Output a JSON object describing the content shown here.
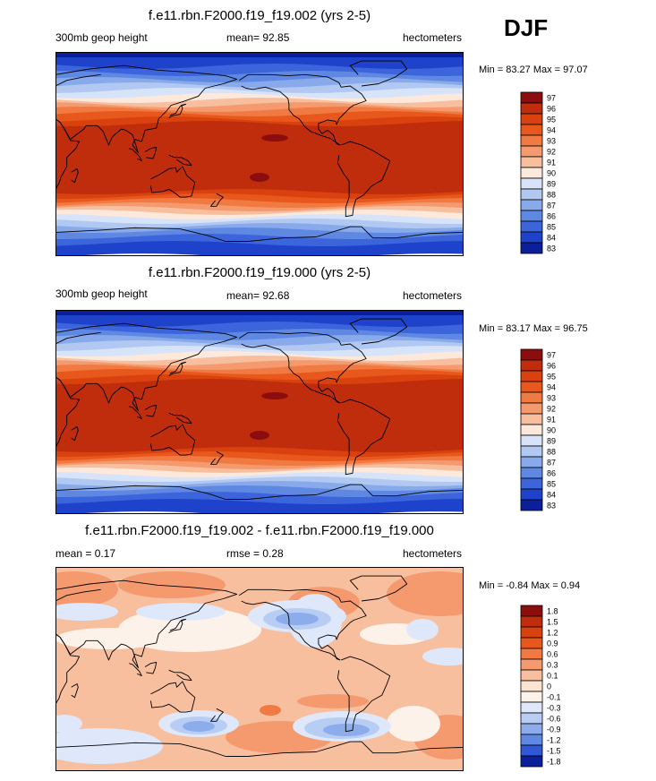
{
  "season": "DJF",
  "panels": [
    {
      "id": "p1",
      "title": "f.e11.rbn.F2000.f19_f19.002 (yrs 2-5)",
      "left_label": "300mb geop height",
      "center_label": "mean=  92.85",
      "right_label": "hectometers",
      "minmax": "Min =  83.27 Max =  97.07",
      "kind": "abs",
      "colorbar_labels": [
        "97",
        "96",
        "95",
        "94",
        "93",
        "92",
        "91",
        "90",
        "89",
        "88",
        "87",
        "86",
        "85",
        "84",
        "83"
      ],
      "colors": [
        "#8c0d0d",
        "#bf2d0c",
        "#d9420f",
        "#e8581d",
        "#f07a41",
        "#f59a6f",
        "#f8bf9f",
        "#fce9dc",
        "#d7e3f8",
        "#b1c8f2",
        "#88a9ea",
        "#5f88e3",
        "#3c65db",
        "#1f42cb",
        "#0a1f99"
      ]
    },
    {
      "id": "p2",
      "title": "f.e11.rbn.F2000.f19_f19.000 (yrs 2-5)",
      "left_label": "300mb geop height",
      "center_label": "mean=  92.68",
      "right_label": "hectometers",
      "minmax": "Min =  83.17 Max =  96.75",
      "kind": "abs",
      "colorbar_labels": [
        "97",
        "96",
        "95",
        "94",
        "93",
        "92",
        "91",
        "90",
        "89",
        "88",
        "87",
        "86",
        "85",
        "84",
        "83"
      ],
      "colors": [
        "#8c0d0d",
        "#bf2d0c",
        "#d9420f",
        "#e8581d",
        "#f07a41",
        "#f59a6f",
        "#f8bf9f",
        "#fce9dc",
        "#d7e3f8",
        "#b1c8f2",
        "#88a9ea",
        "#5f88e3",
        "#3c65db",
        "#1f42cb",
        "#0a1f99"
      ]
    },
    {
      "id": "p3",
      "title": "f.e11.rbn.F2000.f19_f19.002 - f.e11.rbn.F2000.f19_f19.000",
      "left_label": "mean =   0.17",
      "center_label": "rmse =   0.28",
      "right_label": "hectometers",
      "minmax": "Min =  -0.84 Max =   0.94",
      "kind": "diff",
      "colorbar_labels": [
        "1.8",
        "1.5",
        "1.2",
        "0.9",
        "0.6",
        "0.3",
        "0.1",
        "0",
        "-0.1",
        "-0.3",
        "-0.6",
        "-0.9",
        "-1.2",
        "-1.5",
        "-1.8"
      ],
      "colors": [
        "#8c0d0d",
        "#bf2d0c",
        "#d9420f",
        "#e8581d",
        "#f07a41",
        "#f59a6f",
        "#f8bf9f",
        "#fce3d2",
        "#fdf2ea",
        "#dfe8fa",
        "#b8cdf3",
        "#8caceb",
        "#5f88e3",
        "#2f57d6",
        "#0a1f99"
      ]
    }
  ],
  "chart_data": [
    {
      "type": "heatmap",
      "title": "f.e11.rbn.F2000.f19_f19.002 (yrs 2-5)",
      "variable": "300mb geop height",
      "units": "hectometers",
      "mean": 92.85,
      "min": 83.27,
      "max": 97.07,
      "levels": [
        83,
        84,
        85,
        86,
        87,
        88,
        89,
        90,
        91,
        92,
        93,
        94,
        95,
        96,
        97
      ]
    },
    {
      "type": "heatmap",
      "title": "f.e11.rbn.F2000.f19_f19.000 (yrs 2-5)",
      "variable": "300mb geop height",
      "units": "hectometers",
      "mean": 92.68,
      "min": 83.17,
      "max": 96.75,
      "levels": [
        83,
        84,
        85,
        86,
        87,
        88,
        89,
        90,
        91,
        92,
        93,
        94,
        95,
        96,
        97
      ]
    },
    {
      "type": "heatmap",
      "title": "f.e11.rbn.F2000.f19_f19.002 - f.e11.rbn.F2000.f19_f19.000",
      "units": "hectometers",
      "mean": 0.17,
      "rmse": 0.28,
      "min": -0.84,
      "max": 0.94,
      "levels": [
        -1.8,
        -1.5,
        -1.2,
        -0.9,
        -0.6,
        -0.3,
        -0.1,
        0,
        0.1,
        0.3,
        0.6,
        0.9,
        1.2,
        1.5,
        1.8
      ]
    }
  ]
}
